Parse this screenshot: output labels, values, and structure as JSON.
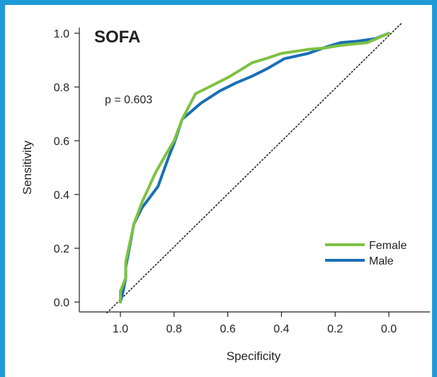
{
  "chart_data": {
    "type": "line",
    "title": "SOFA",
    "annotation": "p = 0.603",
    "xlabel": "Specificity",
    "ylabel": "Sensitivity",
    "xlim": [
      1.1,
      -0.15
    ],
    "ylim": [
      -0.04,
      1.05
    ],
    "x_reversed": true,
    "x_ticks": [
      1.0,
      0.8,
      0.6,
      0.4,
      0.2,
      0.0
    ],
    "x_tick_labels": [
      "1.0",
      "0.8",
      "0.6",
      "0.4",
      "0.2",
      "0.0"
    ],
    "y_ticks": [
      0.0,
      0.2,
      0.4,
      0.6,
      0.8,
      1.0
    ],
    "y_tick_labels": [
      "0.0",
      "0.2",
      "0.4",
      "0.6",
      "0.8",
      "1.0"
    ],
    "grid": false,
    "legend_position": "lower-right",
    "reference_line": {
      "style": "dotted",
      "color": "#231f20",
      "from": [
        1.05,
        -0.04
      ],
      "to": [
        -0.05,
        1.04
      ]
    },
    "series": [
      {
        "name": "Female",
        "color": "#7dc242",
        "points": [
          [
            1.0,
            0.0
          ],
          [
            1.0,
            0.04
          ],
          [
            0.98,
            0.09
          ],
          [
            0.98,
            0.15
          ],
          [
            0.95,
            0.29
          ],
          [
            0.92,
            0.37
          ],
          [
            0.87,
            0.48
          ],
          [
            0.83,
            0.55
          ],
          [
            0.8,
            0.6
          ],
          [
            0.77,
            0.68
          ],
          [
            0.72,
            0.775
          ],
          [
            0.67,
            0.8
          ],
          [
            0.6,
            0.835
          ],
          [
            0.55,
            0.865
          ],
          [
            0.51,
            0.89
          ],
          [
            0.46,
            0.905
          ],
          [
            0.4,
            0.925
          ],
          [
            0.3,
            0.94
          ],
          [
            0.24,
            0.945
          ],
          [
            0.18,
            0.955
          ],
          [
            0.08,
            0.965
          ],
          [
            0.0,
            1.0
          ]
        ]
      },
      {
        "name": "Male",
        "color": "#1a6fb5",
        "points": [
          [
            1.0,
            0.0
          ],
          [
            0.99,
            0.04
          ],
          [
            0.98,
            0.09
          ],
          [
            0.98,
            0.13
          ],
          [
            0.95,
            0.29
          ],
          [
            0.92,
            0.35
          ],
          [
            0.86,
            0.43
          ],
          [
            0.82,
            0.54
          ],
          [
            0.8,
            0.59
          ],
          [
            0.77,
            0.68
          ],
          [
            0.7,
            0.74
          ],
          [
            0.63,
            0.785
          ],
          [
            0.57,
            0.815
          ],
          [
            0.51,
            0.84
          ],
          [
            0.45,
            0.87
          ],
          [
            0.39,
            0.905
          ],
          [
            0.3,
            0.925
          ],
          [
            0.23,
            0.95
          ],
          [
            0.18,
            0.965
          ],
          [
            0.12,
            0.97
          ],
          [
            0.05,
            0.98
          ],
          [
            0.0,
            1.0
          ]
        ]
      }
    ]
  }
}
